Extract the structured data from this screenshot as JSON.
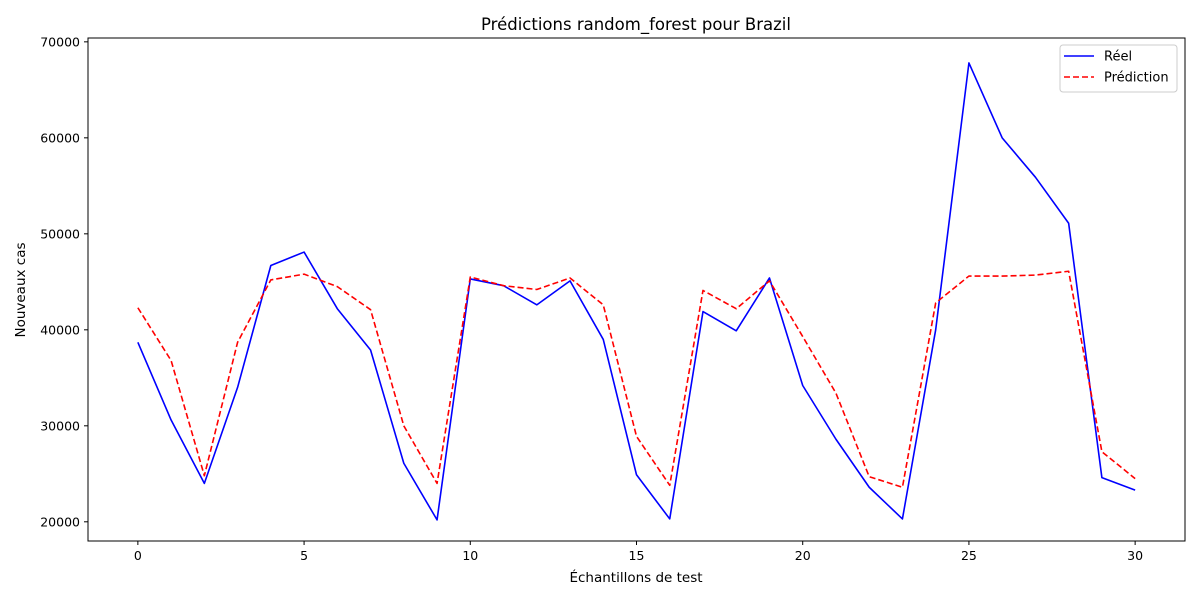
{
  "chart_data": {
    "type": "line",
    "title": "Prédictions random_forest pour Brazil",
    "xlabel": "Échantillons de test",
    "ylabel": "Nouveaux cas",
    "xlim": [
      -1.5,
      31.5
    ],
    "ylim": [
      18000,
      70400
    ],
    "xticks": [
      0,
      5,
      10,
      15,
      20,
      25,
      30
    ],
    "yticks": [
      20000,
      30000,
      40000,
      50000,
      60000,
      70000
    ],
    "grid": false,
    "legend_position": "top-right",
    "x": [
      0,
      1,
      2,
      3,
      4,
      5,
      6,
      7,
      8,
      9,
      10,
      11,
      12,
      13,
      14,
      15,
      16,
      17,
      18,
      19,
      20,
      21,
      22,
      23,
      24,
      25,
      26,
      27,
      28,
      29,
      30
    ],
    "series": [
      {
        "name": "Réel",
        "color": "#0000ff",
        "style": "solid",
        "values": [
          38700,
          30600,
          24000,
          34000,
          46700,
          48100,
          42200,
          37900,
          26100,
          20200,
          45300,
          44600,
          42600,
          45100,
          39000,
          24900,
          20300,
          41900,
          39900,
          45400,
          34200,
          28600,
          23600,
          20300,
          40000,
          67800,
          60000,
          55900,
          51100,
          24600,
          23300
        ]
      },
      {
        "name": "Prédiction",
        "color": "#ff0000",
        "style": "dashed",
        "values": [
          42300,
          36800,
          24800,
          38700,
          45200,
          45800,
          44500,
          42100,
          30000,
          24000,
          45500,
          44600,
          44200,
          45400,
          42600,
          28900,
          23800,
          44100,
          42200,
          45100,
          39300,
          33400,
          24700,
          23600,
          42800,
          45600,
          45600,
          45700,
          46100,
          27300,
          24500
        ]
      }
    ]
  }
}
